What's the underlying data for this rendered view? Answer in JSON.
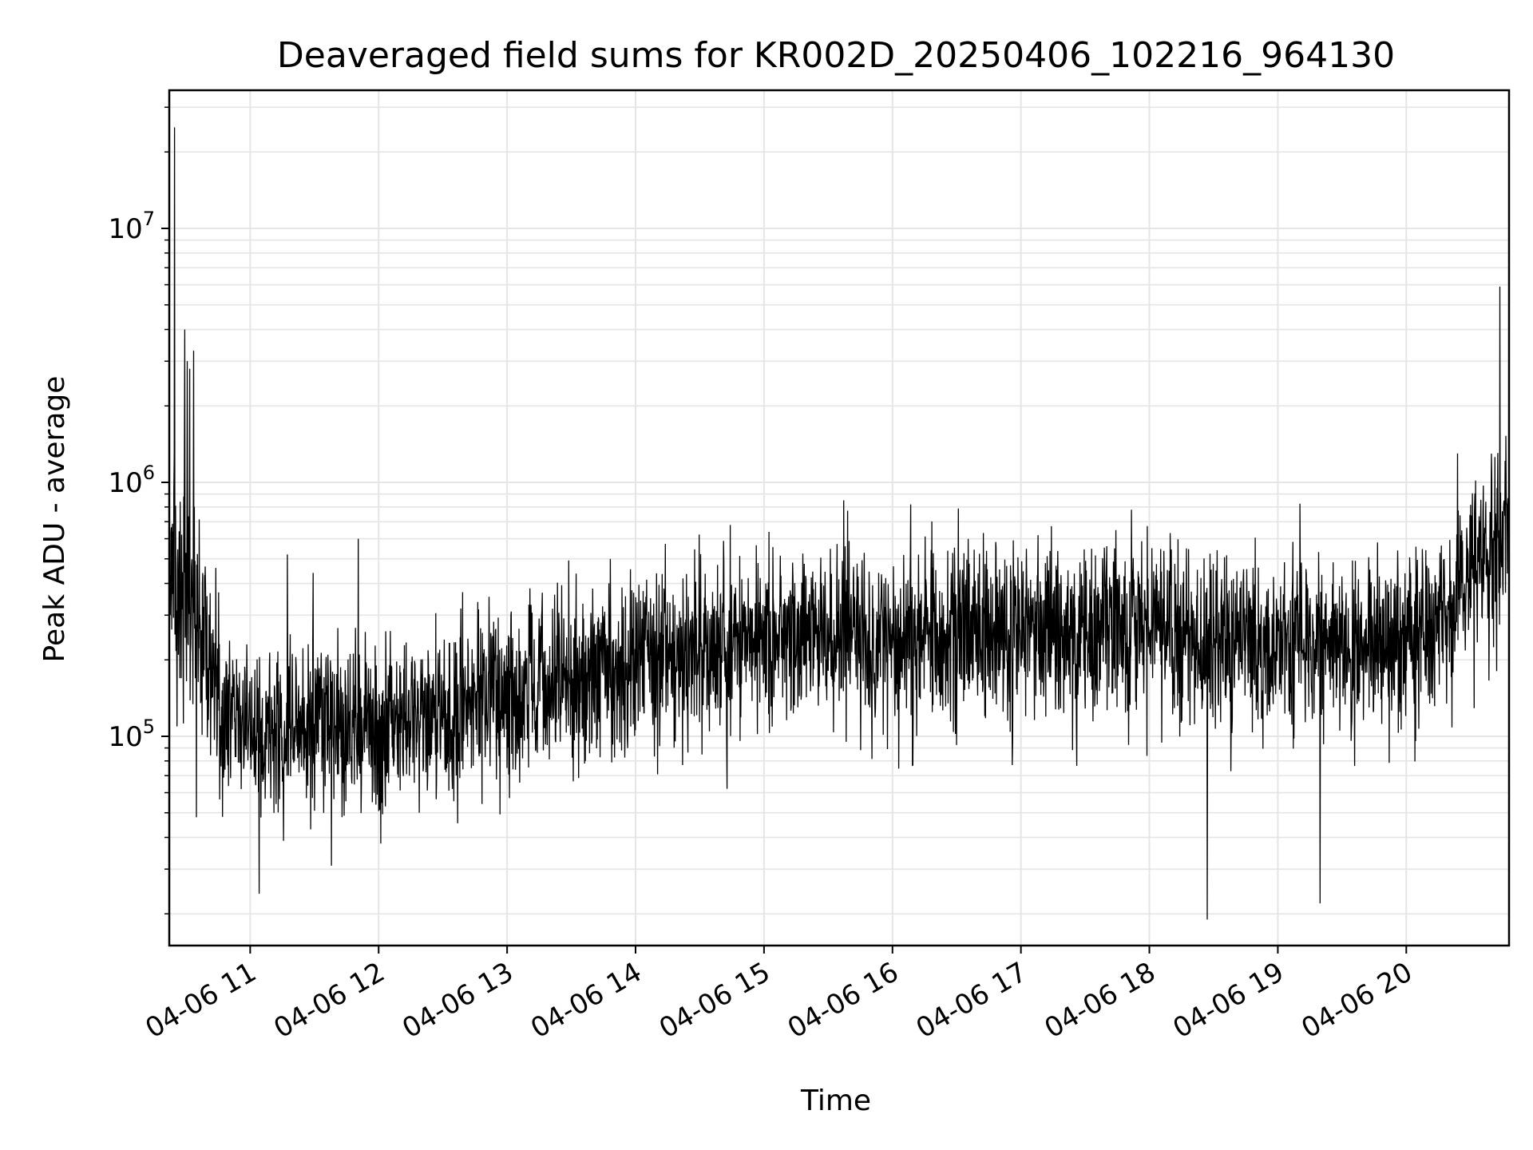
{
  "chart_data": {
    "type": "line",
    "title": "Deaveraged field sums for KR002D_20250406_102216_964130",
    "xlabel": "Time",
    "ylabel": "Peak ADU - average",
    "x_scale": "time",
    "y_scale": "log",
    "xlim": [
      "04-06 10:22",
      "04-06 20:48"
    ],
    "ylim": [
      15000,
      35000000
    ],
    "grid": true,
    "line_color": "#000000",
    "grid_color": "#e5e5e5",
    "x_ticks": [
      "04-06 11",
      "04-06 12",
      "04-06 13",
      "04-06 14",
      "04-06 15",
      "04-06 16",
      "04-06 17",
      "04-06 18",
      "04-06 19",
      "04-06 20"
    ],
    "x_tick_hours": [
      11,
      12,
      13,
      14,
      15,
      16,
      17,
      18,
      19,
      20
    ],
    "y_ticks": [
      {
        "base": "10",
        "exp": "5",
        "value": 100000
      },
      {
        "base": "10",
        "exp": "6",
        "value": 1000000
      },
      {
        "base": "10",
        "exp": "7",
        "value": 10000000
      }
    ],
    "series": [
      {
        "start_hour": 10.37,
        "end_hour": 20.8,
        "trend_hours": [
          10.37,
          10.55,
          10.75,
          11.0,
          11.5,
          12.0,
          12.5,
          13.0,
          13.5,
          14.0,
          14.5,
          15.0,
          15.5,
          16.0,
          16.5,
          17.0,
          17.5,
          18.0,
          18.5,
          19.0,
          19.5,
          20.0,
          20.3,
          20.4,
          20.5,
          20.8
        ],
        "trend_values": [
          450000,
          350000,
          130000,
          100000,
          105000,
          110000,
          125000,
          140000,
          160000,
          190000,
          220000,
          240000,
          250000,
          250000,
          255000,
          260000,
          265000,
          260000,
          250000,
          240000,
          230000,
          230000,
          280000,
          380000,
          520000,
          560000
        ],
        "spikes": [
          {
            "hour": 10.41,
            "value": 25000000
          },
          {
            "hour": 10.49,
            "value": 4000000
          },
          {
            "hour": 10.51,
            "value": 3000000
          },
          {
            "hour": 10.53,
            "value": 2800000
          },
          {
            "hour": 10.56,
            "value": 3300000
          },
          {
            "hour": 10.58,
            "value": 48000
          },
          {
            "hour": 11.07,
            "value": 24000
          },
          {
            "hour": 11.29,
            "value": 520000
          },
          {
            "hour": 11.49,
            "value": 440000
          },
          {
            "hour": 11.84,
            "value": 600000
          },
          {
            "hour": 15.62,
            "value": 850000
          },
          {
            "hour": 17.86,
            "value": 780000
          },
          {
            "hour": 18.45,
            "value": 19000
          },
          {
            "hour": 19.33,
            "value": 22000
          },
          {
            "hour": 20.4,
            "value": 1300000
          },
          {
            "hour": 20.73,
            "value": 5900000
          }
        ]
      }
    ]
  }
}
